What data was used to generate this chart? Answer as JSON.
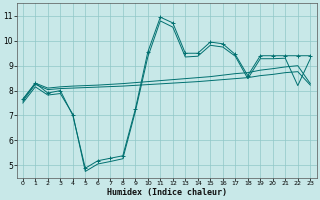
{
  "background_color": "#c8e8e8",
  "grid_color": "#90c8c8",
  "line_color": "#007070",
  "xlabel": "Humidex (Indice chaleur)",
  "xlim": [
    -0.5,
    23.5
  ],
  "ylim": [
    4.5,
    11.5
  ],
  "yticks": [
    5,
    6,
    7,
    8,
    9,
    10,
    11
  ],
  "xticks": [
    0,
    1,
    2,
    3,
    4,
    5,
    6,
    7,
    8,
    9,
    10,
    11,
    12,
    13,
    14,
    15,
    16,
    17,
    18,
    19,
    20,
    21,
    22,
    23
  ],
  "line1_x": [
    0,
    1,
    2,
    3,
    4,
    5,
    6,
    7,
    8,
    9,
    10,
    11,
    12,
    13,
    14,
    15,
    16,
    17,
    18,
    19,
    20,
    21,
    22,
    23
  ],
  "line1_y": [
    7.65,
    8.3,
    7.9,
    8.0,
    7.0,
    4.88,
    5.18,
    5.28,
    5.38,
    7.25,
    9.55,
    10.95,
    10.72,
    9.5,
    9.5,
    9.95,
    9.88,
    9.45,
    8.6,
    9.4,
    9.4,
    9.4,
    9.4,
    9.4
  ],
  "line2_x": [
    0,
    1,
    2,
    3,
    4,
    5,
    6,
    7,
    8,
    9,
    10,
    11,
    12,
    13,
    14,
    15,
    16,
    17,
    18,
    19,
    20,
    21,
    22,
    23
  ],
  "line2_y": [
    7.65,
    8.3,
    8.1,
    8.15,
    8.18,
    8.2,
    8.22,
    8.25,
    8.28,
    8.32,
    8.36,
    8.4,
    8.44,
    8.48,
    8.52,
    8.56,
    8.62,
    8.68,
    8.72,
    8.82,
    8.88,
    8.95,
    9.0,
    8.28
  ],
  "line3_x": [
    0,
    1,
    2,
    3,
    4,
    5,
    6,
    7,
    8,
    9,
    10,
    11,
    12,
    13,
    14,
    15,
    16,
    17,
    18,
    19,
    20,
    21,
    22,
    23
  ],
  "line3_y": [
    7.58,
    8.25,
    8.04,
    8.08,
    8.1,
    8.12,
    8.14,
    8.16,
    8.18,
    8.21,
    8.24,
    8.27,
    8.3,
    8.33,
    8.36,
    8.4,
    8.44,
    8.48,
    8.52,
    8.6,
    8.65,
    8.72,
    8.76,
    8.22
  ],
  "line4_x": [
    0,
    1,
    2,
    3,
    4,
    5,
    6,
    7,
    8,
    9,
    10,
    11,
    12,
    13,
    14,
    15,
    16,
    17,
    18,
    19,
    20,
    21,
    22,
    23
  ],
  "line4_y": [
    7.5,
    8.15,
    7.82,
    7.88,
    7.05,
    4.75,
    5.05,
    5.15,
    5.26,
    7.15,
    9.35,
    10.8,
    10.55,
    9.35,
    9.38,
    9.82,
    9.75,
    9.38,
    8.48,
    9.28,
    9.28,
    9.3,
    8.2,
    9.28
  ]
}
